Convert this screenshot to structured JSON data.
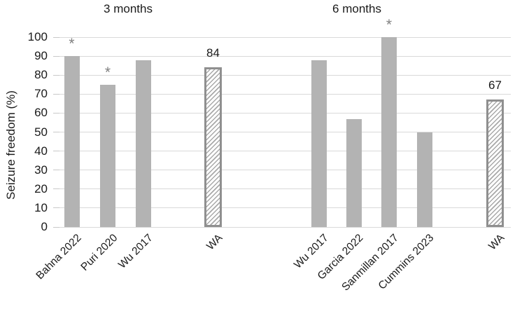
{
  "chart_data": {
    "type": "bar",
    "title": "",
    "ylabel": "Seizure freedom (%)",
    "xlabel": "",
    "ylim": [
      0,
      100
    ],
    "ytick_step": 10,
    "grid": true,
    "legend_position": "none",
    "groups": [
      {
        "title": "3 months",
        "bars": [
          {
            "label": "Bahna 2022",
            "value": 90,
            "star": true,
            "show_value": false,
            "style": "solid"
          },
          {
            "label": "Puri 2020",
            "value": 75,
            "star": true,
            "show_value": false,
            "style": "solid"
          },
          {
            "label": "Wu 2017",
            "value": 88,
            "star": false,
            "show_value": false,
            "style": "solid"
          },
          {
            "label": "WA",
            "value": 84,
            "star": false,
            "show_value": true,
            "style": "hatched"
          }
        ]
      },
      {
        "title": "6 months",
        "bars": [
          {
            "label": "Wu 2017",
            "value": 88,
            "star": false,
            "show_value": false,
            "style": "solid"
          },
          {
            "label": "Garcia 2022",
            "value": 57,
            "star": false,
            "show_value": false,
            "style": "solid"
          },
          {
            "label": "Sanmillan 2017",
            "value": 100,
            "star": true,
            "show_value": false,
            "style": "solid"
          },
          {
            "label": "Cummins 2023",
            "value": 50,
            "star": false,
            "show_value": false,
            "style": "solid"
          },
          {
            "label": "WA",
            "value": 67,
            "star": false,
            "show_value": true,
            "style": "hatched"
          }
        ]
      }
    ],
    "colors": {
      "bar_fill": "#b3b3b3",
      "hatch_border": "#8f8f8f",
      "hatch_line": "#a8a8a8",
      "gridline": "#d9d9d9",
      "star": "#808080",
      "text": "#1a1a1a",
      "background": "#ffffff"
    }
  }
}
